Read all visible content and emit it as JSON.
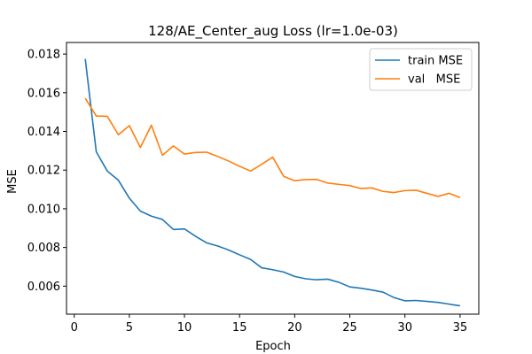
{
  "chart_data": {
    "type": "line",
    "title": "128/AE_Center_aug Loss (lr=1.0e-03)",
    "xlabel": "Epoch",
    "ylabel": "MSE",
    "xlim": [
      -0.7,
      36.7
    ],
    "ylim": [
      0.00455,
      0.0186
    ],
    "xticks": [
      0,
      5,
      10,
      15,
      20,
      25,
      30,
      35
    ],
    "yticks": [
      0.006,
      0.008,
      0.01,
      0.012,
      0.014,
      0.016,
      0.018
    ],
    "grid": false,
    "legend_position": "top-right",
    "x": [
      1,
      2,
      3,
      4,
      5,
      6,
      7,
      8,
      9,
      10,
      11,
      12,
      13,
      14,
      15,
      16,
      17,
      18,
      19,
      20,
      21,
      22,
      23,
      24,
      25,
      26,
      27,
      28,
      29,
      30,
      31,
      32,
      33,
      34,
      35
    ],
    "series": [
      {
        "name": "train MSE",
        "color": "#1f77b4",
        "values": [
          0.01775,
          0.01295,
          0.01195,
          0.01148,
          0.01055,
          0.00988,
          0.00962,
          0.00945,
          0.00893,
          0.00896,
          0.00858,
          0.00824,
          0.00808,
          0.00787,
          0.00762,
          0.00738,
          0.00695,
          0.00685,
          0.00673,
          0.0065,
          0.00638,
          0.00633,
          0.00636,
          0.0062,
          0.00596,
          0.00589,
          0.0058,
          0.00569,
          0.00541,
          0.00524,
          0.00526,
          0.00521,
          0.00516,
          0.00507,
          0.00498
        ]
      },
      {
        "name": "val   MSE",
        "color": "#ff7f0e",
        "values": [
          0.01572,
          0.0148,
          0.01478,
          0.01383,
          0.0143,
          0.01317,
          0.01432,
          0.01277,
          0.01325,
          0.01283,
          0.01291,
          0.01293,
          0.01271,
          0.01247,
          0.0122,
          0.01195,
          0.0123,
          0.01267,
          0.01168,
          0.01145,
          0.01151,
          0.01152,
          0.01133,
          0.01126,
          0.0112,
          0.01105,
          0.01108,
          0.0109,
          0.01084,
          0.01094,
          0.01096,
          0.0108,
          0.01064,
          0.0108,
          0.01058
        ]
      }
    ]
  }
}
